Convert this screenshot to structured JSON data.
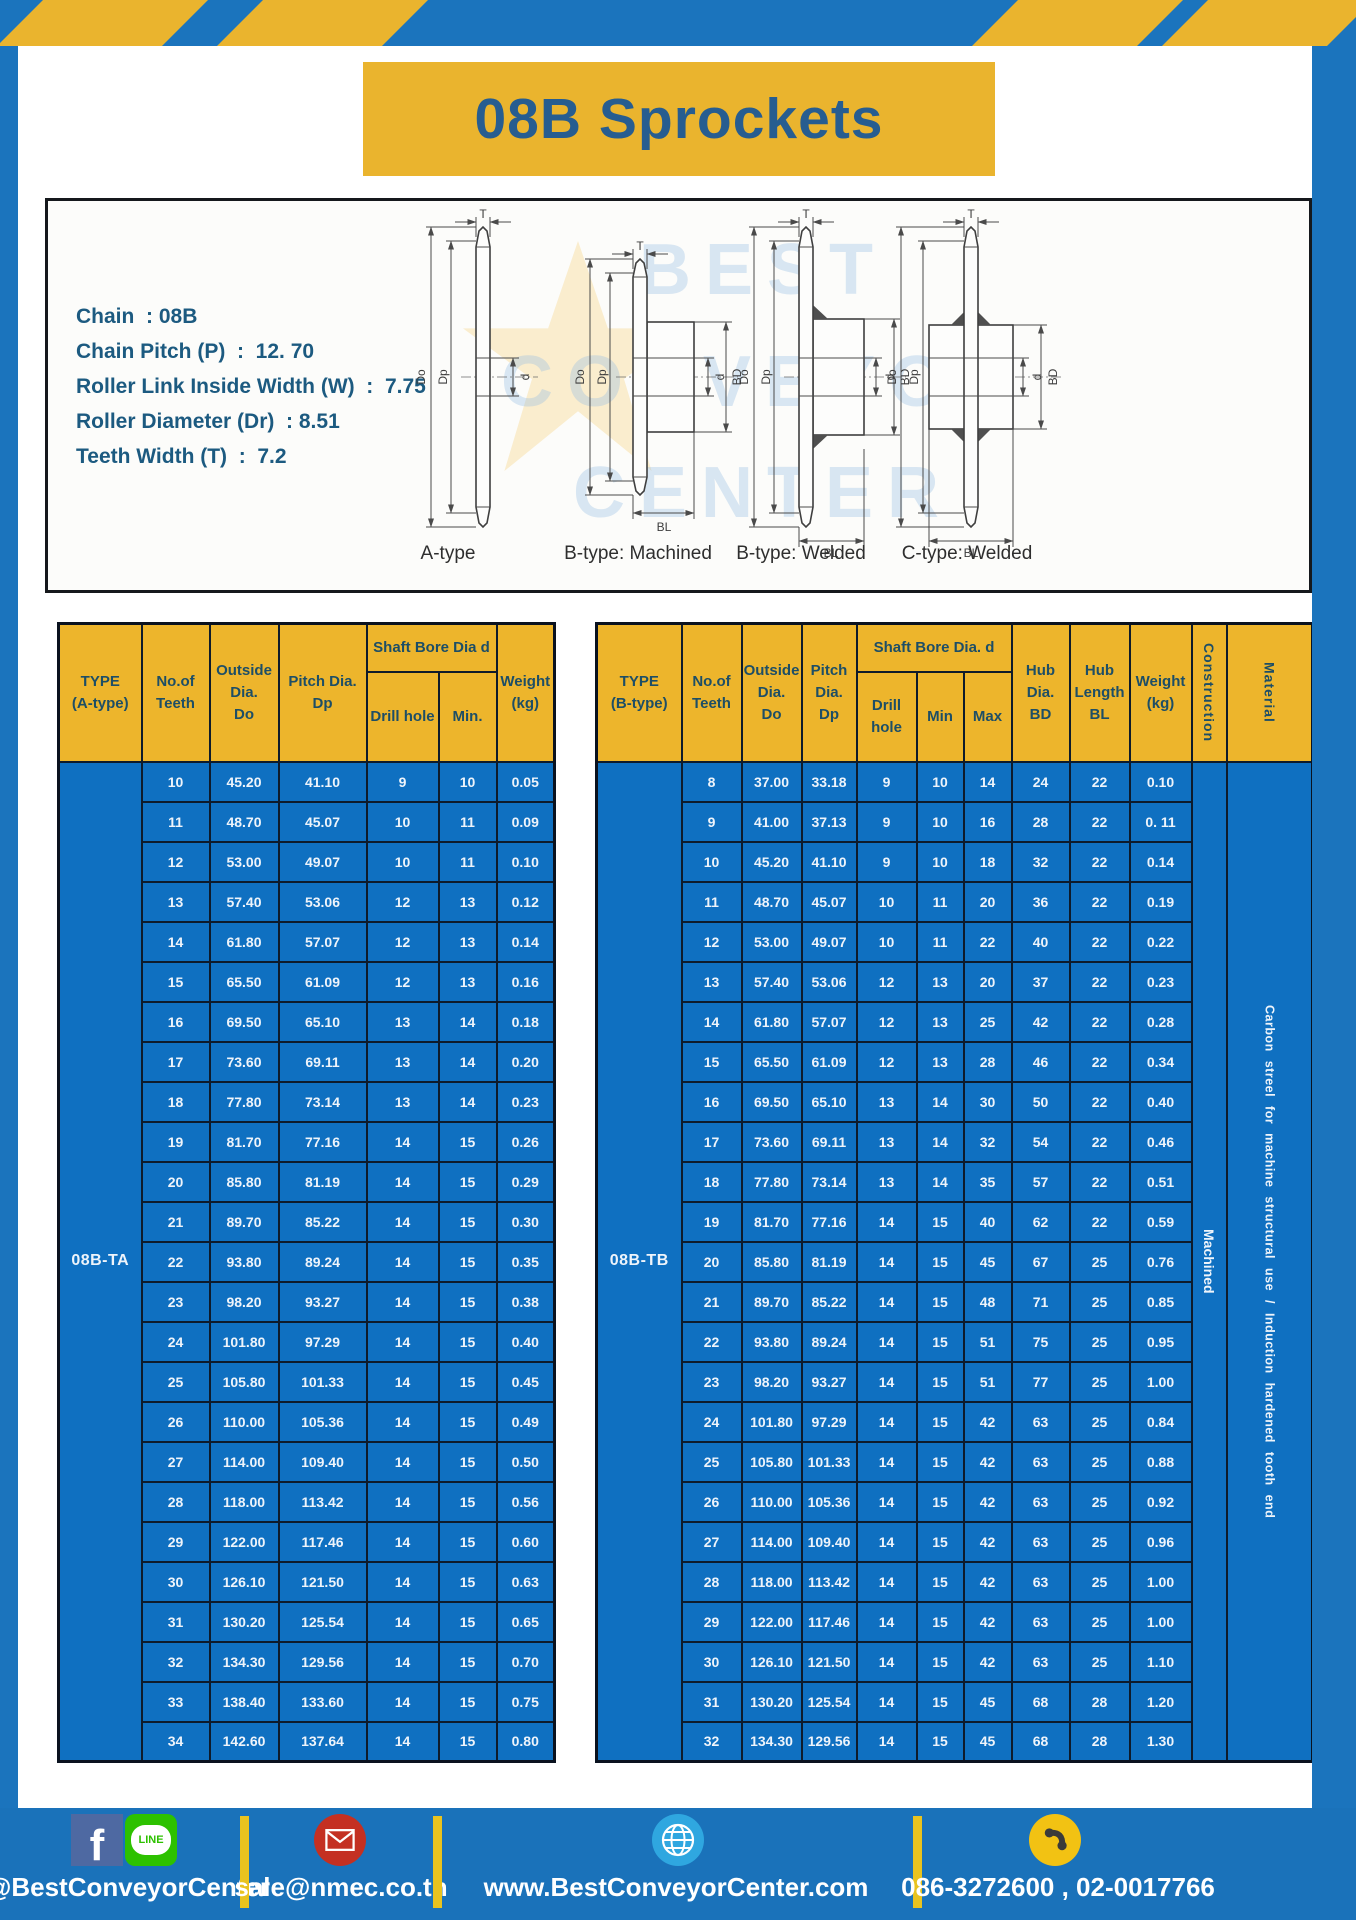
{
  "page": {
    "title": "08B Sprockets"
  },
  "colors": {
    "frame_blue": "#1b74bd",
    "stripe_yellow": "#eab42e",
    "header_yellow": "#edb52c",
    "cell_blue": "#0f70c1",
    "title_text_blue": "#275d90",
    "border_navy": "#0e1b2b"
  },
  "specs": {
    "lines": [
      "Chain  : 08B",
      "Chain Pitch (P)  :  12. 70",
      "Roller Link Inside Width (W)  :  7.75",
      "Roller Diameter (Dr)  : 8.51",
      "Teeth Width (T)  :  7.2"
    ]
  },
  "diagram": {
    "labels": {
      "T": "T",
      "Do": "Do",
      "Dp": "Dp",
      "d": "d",
      "BD": "BD",
      "BL": "BL"
    },
    "types": [
      "A-type",
      "B-type: Machined",
      "B-type: Welded",
      "C-type: Welded"
    ],
    "watermark": "BEST CONVEYOR CENTER"
  },
  "table_a": {
    "headers": {
      "type": "TYPE\n(A-type)",
      "teeth": "No.of\nTeeth",
      "outside": "Outside\nDia.\nDo",
      "pitch": "Pitch Dia.\nDp",
      "shaft": "Shaft Bore Dia d",
      "drill": "Drill hole",
      "min": "Min.",
      "weight": "Weight\n(kg)"
    },
    "type_label": "08B-TA",
    "rows": [
      [
        "10",
        "45.20",
        "41.10",
        "9",
        "10",
        "0.05"
      ],
      [
        "11",
        "48.70",
        "45.07",
        "10",
        "11",
        "0.09"
      ],
      [
        "12",
        "53.00",
        "49.07",
        "10",
        "11",
        "0.10"
      ],
      [
        "13",
        "57.40",
        "53.06",
        "12",
        "13",
        "0.12"
      ],
      [
        "14",
        "61.80",
        "57.07",
        "12",
        "13",
        "0.14"
      ],
      [
        "15",
        "65.50",
        "61.09",
        "12",
        "13",
        "0.16"
      ],
      [
        "16",
        "69.50",
        "65.10",
        "13",
        "14",
        "0.18"
      ],
      [
        "17",
        "73.60",
        "69.11",
        "13",
        "14",
        "0.20"
      ],
      [
        "18",
        "77.80",
        "73.14",
        "13",
        "14",
        "0.23"
      ],
      [
        "19",
        "81.70",
        "77.16",
        "14",
        "15",
        "0.26"
      ],
      [
        "20",
        "85.80",
        "81.19",
        "14",
        "15",
        "0.29"
      ],
      [
        "21",
        "89.70",
        "85.22",
        "14",
        "15",
        "0.30"
      ],
      [
        "22",
        "93.80",
        "89.24",
        "14",
        "15",
        "0.35"
      ],
      [
        "23",
        "98.20",
        "93.27",
        "14",
        "15",
        "0.38"
      ],
      [
        "24",
        "101.80",
        "97.29",
        "14",
        "15",
        "0.40"
      ],
      [
        "25",
        "105.80",
        "101.33",
        "14",
        "15",
        "0.45"
      ],
      [
        "26",
        "110.00",
        "105.36",
        "14",
        "15",
        "0.49"
      ],
      [
        "27",
        "114.00",
        "109.40",
        "14",
        "15",
        "0.50"
      ],
      [
        "28",
        "118.00",
        "113.42",
        "14",
        "15",
        "0.56"
      ],
      [
        "29",
        "122.00",
        "117.46",
        "14",
        "15",
        "0.60"
      ],
      [
        "30",
        "126.10",
        "121.50",
        "14",
        "15",
        "0.63"
      ],
      [
        "31",
        "130.20",
        "125.54",
        "14",
        "15",
        "0.65"
      ],
      [
        "32",
        "134.30",
        "129.56",
        "14",
        "15",
        "0.70"
      ],
      [
        "33",
        "138.40",
        "133.60",
        "14",
        "15",
        "0.75"
      ],
      [
        "34",
        "142.60",
        "137.64",
        "14",
        "15",
        "0.80"
      ]
    ]
  },
  "table_b": {
    "headers": {
      "type": "TYPE\n(B-type)",
      "teeth": "No.of\nTeeth",
      "outside": "Outside\nDia.\nDo",
      "pitch": "Pitch\nDia.\nDp",
      "shaft": "Shaft Bore Dia.  d",
      "drill": "Drill hole",
      "min": "Min",
      "max": "Max",
      "hub_dia": "Hub\nDia.\nBD",
      "hub_len": "Hub\nLength\nBL",
      "weight": "Weight\n(kg)",
      "construction": "Construction",
      "material": "Material"
    },
    "type_label": "08B-TB",
    "construction_value": "Machined",
    "material_value": "Carbon streel for machine structural use / Induction hardened tooth end",
    "rows": [
      [
        "8",
        "37.00",
        "33.18",
        "9",
        "10",
        "14",
        "24",
        "22",
        "0.10"
      ],
      [
        "9",
        "41.00",
        "37.13",
        "9",
        "10",
        "16",
        "28",
        "22",
        "0. 11"
      ],
      [
        "10",
        "45.20",
        "41.10",
        "9",
        "10",
        "18",
        "32",
        "22",
        "0.14"
      ],
      [
        "11",
        "48.70",
        "45.07",
        "10",
        "11",
        "20",
        "36",
        "22",
        "0.19"
      ],
      [
        "12",
        "53.00",
        "49.07",
        "10",
        "11",
        "22",
        "40",
        "22",
        "0.22"
      ],
      [
        "13",
        "57.40",
        "53.06",
        "12",
        "13",
        "20",
        "37",
        "22",
        "0.23"
      ],
      [
        "14",
        "61.80",
        "57.07",
        "12",
        "13",
        "25",
        "42",
        "22",
        "0.28"
      ],
      [
        "15",
        "65.50",
        "61.09",
        "12",
        "13",
        "28",
        "46",
        "22",
        "0.34"
      ],
      [
        "16",
        "69.50",
        "65.10",
        "13",
        "14",
        "30",
        "50",
        "22",
        "0.40"
      ],
      [
        "17",
        "73.60",
        "69.11",
        "13",
        "14",
        "32",
        "54",
        "22",
        "0.46"
      ],
      [
        "18",
        "77.80",
        "73.14",
        "13",
        "14",
        "35",
        "57",
        "22",
        "0.51"
      ],
      [
        "19",
        "81.70",
        "77.16",
        "14",
        "15",
        "40",
        "62",
        "22",
        "0.59"
      ],
      [
        "20",
        "85.80",
        "81.19",
        "14",
        "15",
        "45",
        "67",
        "25",
        "0.76"
      ],
      [
        "21",
        "89.70",
        "85.22",
        "14",
        "15",
        "48",
        "71",
        "25",
        "0.85"
      ],
      [
        "22",
        "93.80",
        "89.24",
        "14",
        "15",
        "51",
        "75",
        "25",
        "0.95"
      ],
      [
        "23",
        "98.20",
        "93.27",
        "14",
        "15",
        "51",
        "77",
        "25",
        "1.00"
      ],
      [
        "24",
        "101.80",
        "97.29",
        "14",
        "15",
        "42",
        "63",
        "25",
        "0.84"
      ],
      [
        "25",
        "105.80",
        "101.33",
        "14",
        "15",
        "42",
        "63",
        "25",
        "0.88"
      ],
      [
        "26",
        "110.00",
        "105.36",
        "14",
        "15",
        "42",
        "63",
        "25",
        "0.92"
      ],
      [
        "27",
        "114.00",
        "109.40",
        "14",
        "15",
        "42",
        "63",
        "25",
        "0.96"
      ],
      [
        "28",
        "118.00",
        "113.42",
        "14",
        "15",
        "42",
        "63",
        "25",
        "1.00"
      ],
      [
        "29",
        "122.00",
        "117.46",
        "14",
        "15",
        "42",
        "63",
        "25",
        "1.00"
      ],
      [
        "30",
        "126.10",
        "121.50",
        "14",
        "15",
        "42",
        "63",
        "25",
        "1.10"
      ],
      [
        "31",
        "130.20",
        "125.54",
        "14",
        "15",
        "45",
        "68",
        "28",
        "1.20"
      ],
      [
        "32",
        "134.30",
        "129.56",
        "14",
        "15",
        "45",
        "68",
        "28",
        "1.30"
      ]
    ]
  },
  "footer": {
    "social_handle": "@BestConveyorCenter",
    "line_label": "LINE",
    "fb_label": "f",
    "email": "sale@nmec.co.th",
    "website": "www.BestConveyorCenter.com",
    "phones": "086-3272600 , 02-0017766"
  }
}
